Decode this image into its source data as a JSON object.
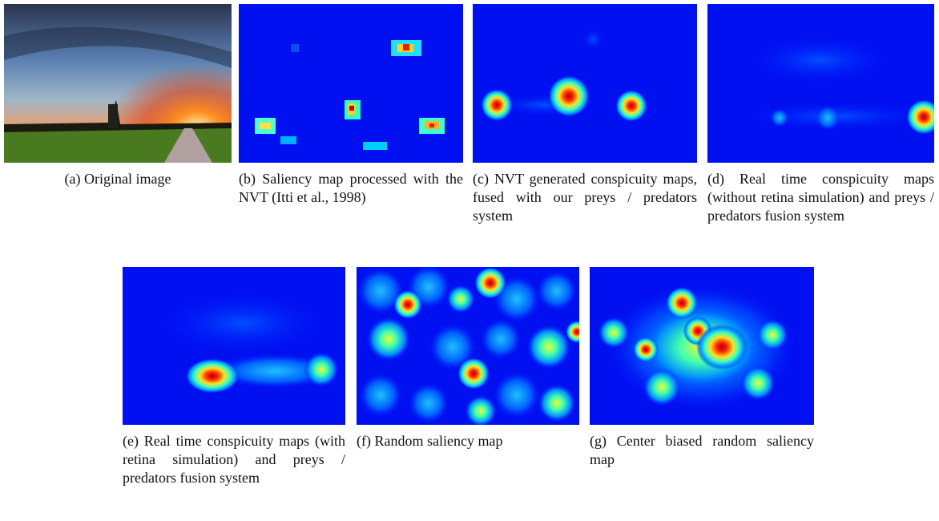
{
  "panels": [
    {
      "label": "(a)",
      "caption": "Original image"
    },
    {
      "label": "(b)",
      "caption": "Saliency map processed with the NVT (Itti et al., 1998)"
    },
    {
      "label": "(c)",
      "caption": "NVT generated conspicuity maps, fused with our preys / predators system"
    },
    {
      "label": "(d)",
      "caption": "Real time conspicuity maps (without retina simulation) and preys / predators fusion system"
    },
    {
      "label": "(e)",
      "caption": "Real time conspicuity maps (with retina simulation) and preys / predators fusion system"
    },
    {
      "label": "(f)",
      "caption": "Random saliency map"
    },
    {
      "label": "(g)",
      "caption": "Center biased random saliency map"
    }
  ]
}
